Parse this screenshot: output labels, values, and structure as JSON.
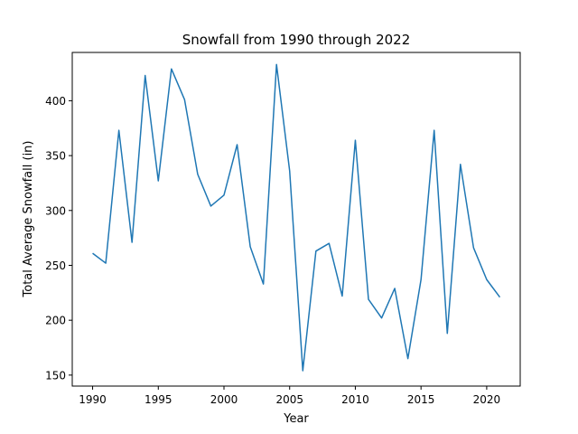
{
  "chart_data": {
    "type": "line",
    "title": "Snowfall from 1990 through 2022",
    "xlabel": "Year",
    "ylabel": "Total Average Snowfall (in)",
    "xlim": [
      1988.45,
      2022.55
    ],
    "ylim": [
      140,
      444
    ],
    "xticks": [
      1990,
      1995,
      2000,
      2005,
      2010,
      2015,
      2020
    ],
    "yticks": [
      150,
      200,
      250,
      300,
      350,
      400
    ],
    "grid": false,
    "series": [
      {
        "color": "#1f77b4",
        "x": [
          1990,
          1991,
          1992,
          1993,
          1994,
          1995,
          1996,
          1997,
          1998,
          1999,
          2000,
          2001,
          2002,
          2003,
          2004,
          2005,
          2006,
          2007,
          2008,
          2009,
          2010,
          2011,
          2012,
          2013,
          2014,
          2015,
          2016,
          2017,
          2018,
          2019,
          2020,
          2021
        ],
        "y": [
          261,
          252,
          373,
          271,
          423,
          327,
          429,
          401,
          333,
          304,
          314,
          360,
          267,
          233,
          433,
          336,
          154,
          263,
          270,
          222,
          364,
          219,
          202,
          229,
          165,
          237,
          373,
          188,
          342,
          266,
          237,
          221
        ]
      }
    ]
  }
}
